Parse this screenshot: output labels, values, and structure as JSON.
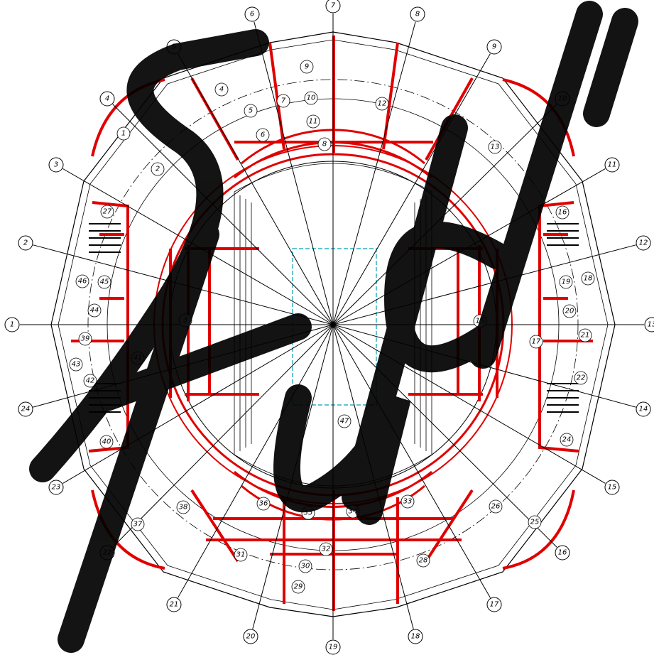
{
  "axes": [
    {
      "label": "1"
    },
    {
      "label": "2"
    },
    {
      "label": "3"
    },
    {
      "label": "4"
    },
    {
      "label": "5"
    },
    {
      "label": "6"
    },
    {
      "label": "7"
    },
    {
      "label": "8"
    },
    {
      "label": "9"
    },
    {
      "label": "10"
    },
    {
      "label": "11"
    },
    {
      "label": "12"
    },
    {
      "label": "13"
    },
    {
      "label": "14"
    },
    {
      "label": "15"
    },
    {
      "label": "16"
    },
    {
      "label": "17"
    },
    {
      "label": "18"
    },
    {
      "label": "19"
    },
    {
      "label": "20"
    },
    {
      "label": "21"
    },
    {
      "label": "22"
    },
    {
      "label": "23"
    },
    {
      "label": "24"
    }
  ],
  "rooms": [
    {
      "label": "1"
    },
    {
      "label": "2"
    },
    {
      "label": "3"
    },
    {
      "label": "4"
    },
    {
      "label": "5"
    },
    {
      "label": "6"
    },
    {
      "label": "7"
    },
    {
      "label": "8"
    },
    {
      "label": "9"
    },
    {
      "label": "10"
    },
    {
      "label": "11"
    },
    {
      "label": "12"
    },
    {
      "label": "13"
    },
    {
      "label": "15"
    },
    {
      "label": "16"
    },
    {
      "label": "17"
    },
    {
      "label": "18"
    },
    {
      "label": "19"
    },
    {
      "label": "20"
    },
    {
      "label": "21"
    },
    {
      "label": "22"
    },
    {
      "label": "24"
    },
    {
      "label": "25"
    },
    {
      "label": "26"
    },
    {
      "label": "27"
    },
    {
      "label": "28"
    },
    {
      "label": "29"
    },
    {
      "label": "30"
    },
    {
      "label": "31"
    },
    {
      "label": "32"
    },
    {
      "label": "33"
    },
    {
      "label": "34"
    },
    {
      "label": "35"
    },
    {
      "label": "36"
    },
    {
      "label": "37"
    },
    {
      "label": "38"
    },
    {
      "label": "39"
    },
    {
      "label": "40"
    },
    {
      "label": "41"
    },
    {
      "label": "42"
    },
    {
      "label": "43"
    },
    {
      "label": "44"
    },
    {
      "label": "45"
    },
    {
      "label": "46"
    },
    {
      "label": "47"
    }
  ]
}
